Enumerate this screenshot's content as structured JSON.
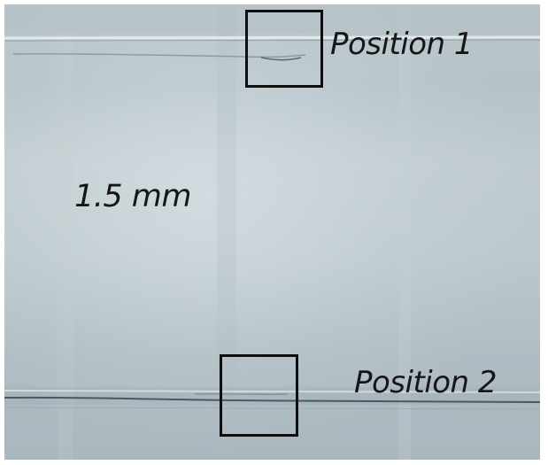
{
  "figure": {
    "label_position_1": "Position 1",
    "label_position_2": "Position 2",
    "label_thickness": "1.5 mm"
  },
  "colors": {
    "sheet": "#b9c5ca",
    "box_outline": "#0e0e0e",
    "label_text": "#161616"
  }
}
